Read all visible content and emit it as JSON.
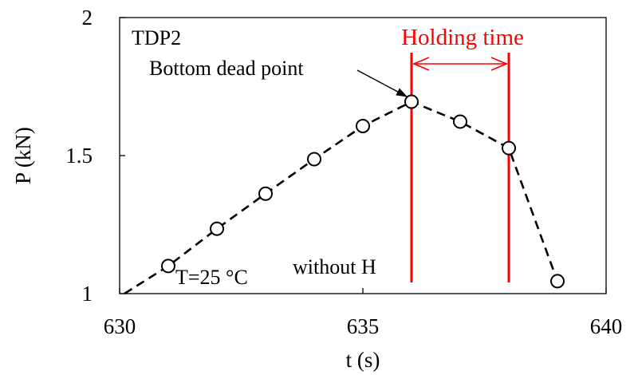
{
  "chart_data": {
    "type": "line",
    "title": "",
    "xlabel": "t (s)",
    "ylabel": "P (kN)",
    "xlim": [
      630,
      640
    ],
    "ylim": [
      1,
      2
    ],
    "x_ticks": [
      630,
      635,
      640
    ],
    "x_tick_labels": [
      "630",
      "635",
      "640"
    ],
    "y_ticks": [
      1,
      1.5,
      2
    ],
    "y_tick_labels": [
      "1",
      "1.5",
      "2"
    ],
    "grid": false,
    "series": [
      {
        "name": "",
        "line_style": "dashed",
        "marker": "open-circle",
        "color": "#000000",
        "line_x": [
          630.1,
          631,
          632,
          633,
          634,
          635,
          636,
          637,
          638,
          639
        ],
        "line_y": [
          1.0,
          1.1,
          1.235,
          1.362,
          1.487,
          1.607,
          1.695,
          1.623,
          1.527,
          1.045
        ],
        "points_x": [
          631,
          632,
          633,
          634,
          635,
          636,
          637,
          638,
          639
        ],
        "points_y": [
          1.1,
          1.235,
          1.362,
          1.487,
          1.607,
          1.695,
          1.623,
          1.527,
          1.045
        ]
      }
    ],
    "annotations": {
      "panel_label": "TDP2",
      "bottom_dead_point_label": "Bottom dead point",
      "bottom_dead_point_x": 636,
      "bottom_dead_point_y": 1.695,
      "holding_time_label": "Holding time",
      "holding_start_x": 636,
      "holding_end_x": 638,
      "holding_color": "#ff0000",
      "temperature_label": "T=25 °C",
      "condition_label": "without H"
    }
  }
}
